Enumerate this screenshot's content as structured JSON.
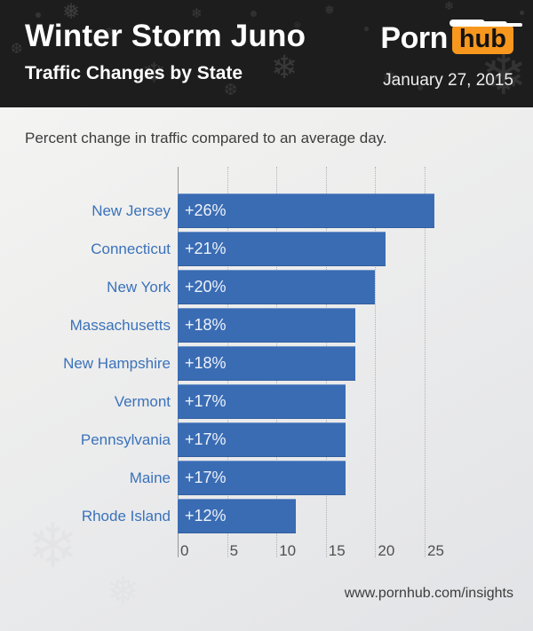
{
  "header": {
    "title": "Winter Storm Juno",
    "subtitle": "Traffic Changes by State",
    "logo": {
      "part1": "Porn",
      "part2": "hub"
    },
    "date": "January 27, 2015"
  },
  "main": {
    "description": "Percent change in traffic compared to an average day."
  },
  "chart_data": {
    "type": "bar",
    "orientation": "horizontal",
    "title": "Traffic Changes by State",
    "xlabel": "Percent change in traffic",
    "categories": [
      "New Jersey",
      "Connecticut",
      "New York",
      "Massachusetts",
      "New Hampshire",
      "Vermont",
      "Pennsylvania",
      "Maine",
      "Rhode Island"
    ],
    "values": [
      26,
      21,
      20,
      18,
      18,
      17,
      17,
      17,
      12
    ],
    "value_labels": [
      "+26%",
      "+21%",
      "+20%",
      "+18%",
      "+18%",
      "+17%",
      "+17%",
      "+17%",
      "+12%"
    ],
    "x_ticks": [
      0,
      5,
      10,
      15,
      20,
      25
    ],
    "xlim": [
      0,
      27
    ],
    "grid": "vertical-dotted",
    "legend": "none",
    "colors": {
      "bar": "#3a6cb4",
      "state_label": "#3a72ba",
      "value_text": "#eef3fa",
      "accent_orange": "#f7971d"
    }
  },
  "footer": {
    "url": "www.pornhub.com/insights"
  }
}
